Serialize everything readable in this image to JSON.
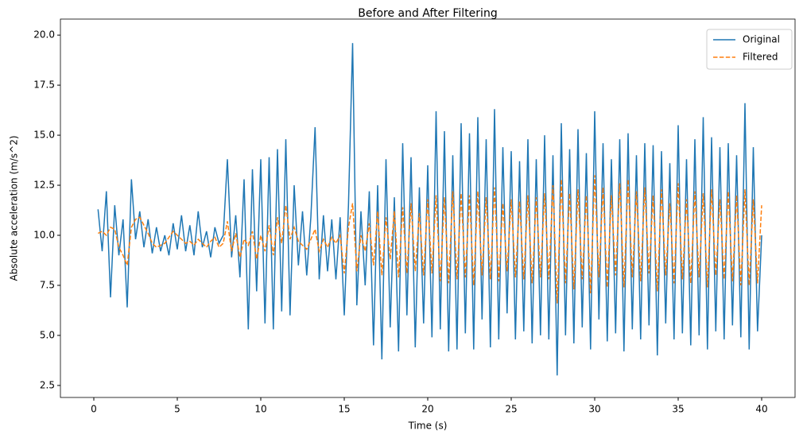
{
  "chart_data": {
    "type": "line",
    "title": "Before and After Filtering",
    "xlabel": "Time (s)",
    "ylabel": "Absolute acceleration (m/s^2)",
    "x": [
      0.25,
      0.5,
      0.75,
      1,
      1.25,
      1.5,
      1.75,
      2,
      2.25,
      2.5,
      2.75,
      3,
      3.25,
      3.5,
      3.75,
      4,
      4.25,
      4.5,
      4.75,
      5,
      5.25,
      5.5,
      5.75,
      6,
      6.25,
      6.5,
      6.75,
      7,
      7.25,
      7.5,
      7.75,
      8,
      8.25,
      8.5,
      8.75,
      9,
      9.25,
      9.5,
      9.75,
      10,
      10.25,
      10.5,
      10.75,
      11,
      11.25,
      11.5,
      11.75,
      12,
      12.25,
      12.5,
      12.75,
      13,
      13.25,
      13.5,
      13.75,
      14,
      14.25,
      14.5,
      14.75,
      15,
      15.25,
      15.5,
      15.75,
      16,
      16.25,
      16.5,
      16.75,
      17,
      17.25,
      17.5,
      17.75,
      18,
      18.25,
      18.5,
      18.75,
      19,
      19.25,
      19.5,
      19.75,
      20,
      20.25,
      20.5,
      20.75,
      21,
      21.25,
      21.5,
      21.75,
      22,
      22.25,
      22.5,
      22.75,
      23,
      23.25,
      23.5,
      23.75,
      24,
      24.25,
      24.5,
      24.75,
      25,
      25.25,
      25.5,
      25.75,
      26,
      26.25,
      26.5,
      26.75,
      27,
      27.25,
      27.5,
      27.75,
      28,
      28.25,
      28.5,
      28.75,
      29,
      29.25,
      29.5,
      29.75,
      30,
      30.25,
      30.5,
      30.75,
      31,
      31.25,
      31.5,
      31.75,
      32,
      32.25,
      32.5,
      32.75,
      33,
      33.25,
      33.5,
      33.75,
      34,
      34.25,
      34.5,
      34.75,
      35,
      35.25,
      35.5,
      35.75,
      36,
      36.25,
      36.5,
      36.75,
      37,
      37.25,
      37.5,
      37.75,
      38,
      38.25,
      38.5,
      38.75,
      39,
      39.25,
      39.5,
      39.75,
      40
    ],
    "series": [
      {
        "name": "Original",
        "color": "#1f77b4",
        "dash": "solid",
        "values": [
          11.3,
          9.2,
          12.2,
          6.9,
          11.5,
          9.0,
          10.8,
          6.4,
          12.8,
          9.8,
          11.2,
          9.4,
          10.8,
          9.1,
          10.4,
          9.2,
          10.0,
          9.0,
          10.6,
          9.3,
          11.0,
          9.2,
          10.5,
          9.0,
          11.2,
          9.4,
          10.2,
          8.9,
          10.4,
          9.6,
          10.0,
          13.8,
          8.9,
          11.0,
          7.9,
          12.8,
          5.3,
          13.3,
          7.2,
          13.8,
          5.6,
          13.9,
          5.3,
          14.3,
          6.2,
          14.8,
          6.0,
          12.5,
          8.5,
          11.2,
          8.0,
          10.9,
          15.4,
          7.8,
          11.0,
          8.2,
          10.8,
          7.8,
          10.9,
          6.0,
          11.5,
          19.6,
          6.5,
          11.2,
          7.5,
          12.2,
          4.5,
          12.5,
          3.8,
          13.8,
          5.4,
          11.9,
          4.2,
          14.6,
          6.0,
          13.9,
          4.4,
          12.4,
          5.6,
          13.5,
          4.9,
          16.2,
          5.3,
          15.2,
          4.2,
          14.0,
          4.3,
          15.6,
          5.1,
          15.1,
          4.3,
          15.9,
          5.8,
          14.8,
          4.4,
          16.3,
          4.8,
          14.4,
          6.1,
          14.2,
          4.8,
          13.7,
          5.2,
          14.8,
          4.6,
          13.8,
          5.0,
          15.0,
          4.8,
          14.0,
          3.0,
          15.6,
          5.0,
          14.3,
          4.6,
          15.3,
          5.4,
          14.1,
          4.3,
          16.2,
          5.8,
          14.6,
          4.7,
          13.8,
          5.1,
          14.8,
          4.2,
          15.1,
          5.3,
          14.0,
          4.8,
          14.6,
          5.5,
          14.5,
          4.0,
          14.2,
          5.6,
          13.6,
          4.8,
          15.5,
          5.1,
          13.8,
          4.5,
          14.8,
          5.0,
          15.9,
          4.3,
          14.9,
          5.2,
          14.4,
          4.8,
          14.6,
          5.5,
          14.0,
          4.9,
          16.6,
          4.3,
          14.4,
          5.2,
          10.0
        ]
      },
      {
        "name": "Filtered",
        "color": "#ff7f0e",
        "dash": "dashed",
        "values": [
          10.1,
          10.2,
          10.0,
          10.4,
          10.3,
          9.4,
          9.0,
          8.5,
          10.4,
          10.8,
          10.9,
          10.5,
          10.1,
          9.6,
          9.4,
          9.5,
          9.6,
          9.9,
          10.2,
          10.0,
          9.8,
          9.6,
          9.7,
          9.5,
          9.8,
          9.6,
          9.4,
          9.7,
          9.9,
          9.4,
          9.6,
          10.7,
          9.2,
          10.1,
          8.9,
          9.8,
          9.5,
          10.2,
          8.8,
          10.0,
          9.2,
          10.5,
          9.0,
          10.9,
          9.6,
          11.5,
          9.8,
          10.4,
          9.7,
          9.5,
          9.3,
          9.8,
          10.3,
          9.2,
          9.8,
          9.4,
          9.9,
          9.6,
          10.0,
          8.1,
          10.4,
          11.6,
          8.2,
          10.0,
          9.2,
          10.6,
          8.5,
          11.2,
          8.0,
          10.9,
          8.8,
          11.2,
          7.9,
          11.4,
          8.1,
          11.6,
          8.2,
          11.1,
          8.0,
          11.8,
          8.1,
          12.0,
          7.7,
          11.9,
          7.6,
          12.2,
          7.8,
          12.1,
          7.9,
          12.0,
          7.5,
          12.2,
          8.0,
          11.9,
          7.8,
          12.4,
          7.7,
          11.6,
          8.2,
          11.8,
          7.9,
          11.7,
          7.8,
          12.0,
          7.6,
          11.9,
          7.9,
          12.1,
          7.8,
          12.5,
          6.6,
          12.8,
          7.6,
          12.1,
          7.3,
          12.3,
          7.8,
          12.0,
          7.1,
          13.0,
          7.9,
          12.4,
          7.4,
          12.0,
          8.0,
          12.6,
          7.4,
          12.8,
          7.9,
          12.2,
          7.7,
          12.4,
          8.1,
          12.0,
          7.2,
          12.3,
          8.0,
          11.6,
          7.6,
          12.6,
          7.8,
          11.8,
          7.6,
          12.2,
          7.9,
          12.1,
          7.4,
          12.3,
          8.0,
          11.8,
          7.8,
          12.2,
          7.7,
          12.0,
          7.5,
          12.3,
          7.5,
          11.8,
          7.6,
          11.5
        ]
      }
    ],
    "xlim": [
      -2,
      42
    ],
    "xticks": [
      0,
      5,
      10,
      15,
      20,
      25,
      30,
      35,
      40
    ],
    "ylim": [
      1.9,
      20.8
    ],
    "yticks": [
      2.5,
      {
        "value": 5,
        "label": "5.0"
      },
      7.5,
      {
        "value": 10,
        "label": "10.0"
      },
      12.5,
      {
        "value": 15,
        "label": "15.0"
      },
      17.5,
      {
        "value": 20,
        "label": "20.0"
      }
    ],
    "legend": "upper right"
  }
}
